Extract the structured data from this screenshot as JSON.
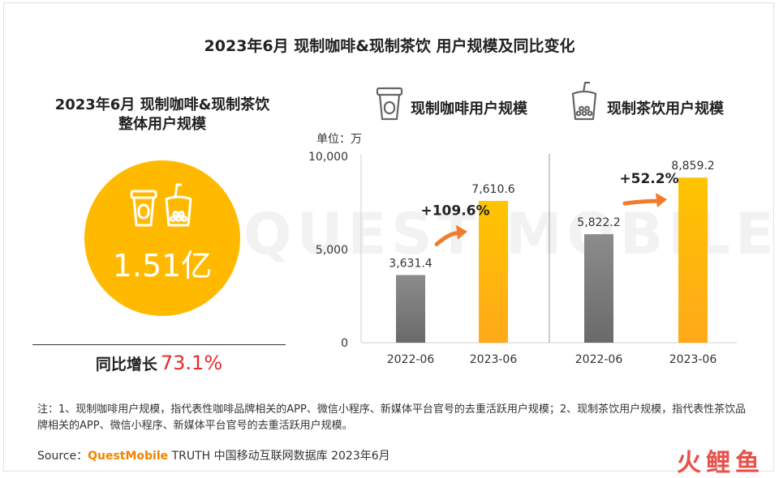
{
  "title": "2023年6月 现制咖啡&现制茶饮 用户规模及同比变化",
  "overall": {
    "title_line1": "2023年6月 现制咖啡&现制茶饮",
    "title_line2": "整体用户规模",
    "value": "1.51亿",
    "growth_label": "同比增长",
    "growth_rate": "73.1%"
  },
  "legend": {
    "coffee": "现制咖啡用户规模",
    "tea": "现制茶饮用户规模"
  },
  "chart_data": {
    "type": "bar",
    "unit": "单位：万",
    "ylim": [
      0,
      10000
    ],
    "yticks": [
      0,
      5000,
      10000
    ],
    "ytick_labels": [
      "0",
      "5,000",
      "10,000"
    ],
    "groups": [
      {
        "name": "现制咖啡用户规模",
        "categories": [
          "2022-06",
          "2023-06"
        ],
        "values": [
          3631.4,
          7610.6
        ],
        "value_labels": [
          "3,631.4",
          "7,610.6"
        ],
        "growth": "+109.6%"
      },
      {
        "name": "现制茶饮用户规模",
        "categories": [
          "2022-06",
          "2023-06"
        ],
        "values": [
          5822.2,
          8859.2
        ],
        "value_labels": [
          "5,822.2",
          "8,859.2"
        ],
        "growth": "+52.2%"
      }
    ],
    "colors": {
      "prev": "#7d7d7d",
      "curr": "#ffb400",
      "arrow": "#f07d2e"
    }
  },
  "note": "注：1、现制咖啡用户规模，指代表性咖啡品牌相关的APP、微信小程序、新媒体平台官号的去重活跃用户规模；2、现制茶饮用户规模，指代表性茶饮品牌相关的APP、微信小程序、新媒体平台官号的去重活跃用户规模。",
  "source": {
    "prefix": "Source：",
    "brand": "QuestMobile",
    "rest": " TRUTH 中国移动互联网数据库 2023年6月"
  },
  "watermark": "QUEST MOBILE",
  "corner_logo": "火鲤鱼"
}
